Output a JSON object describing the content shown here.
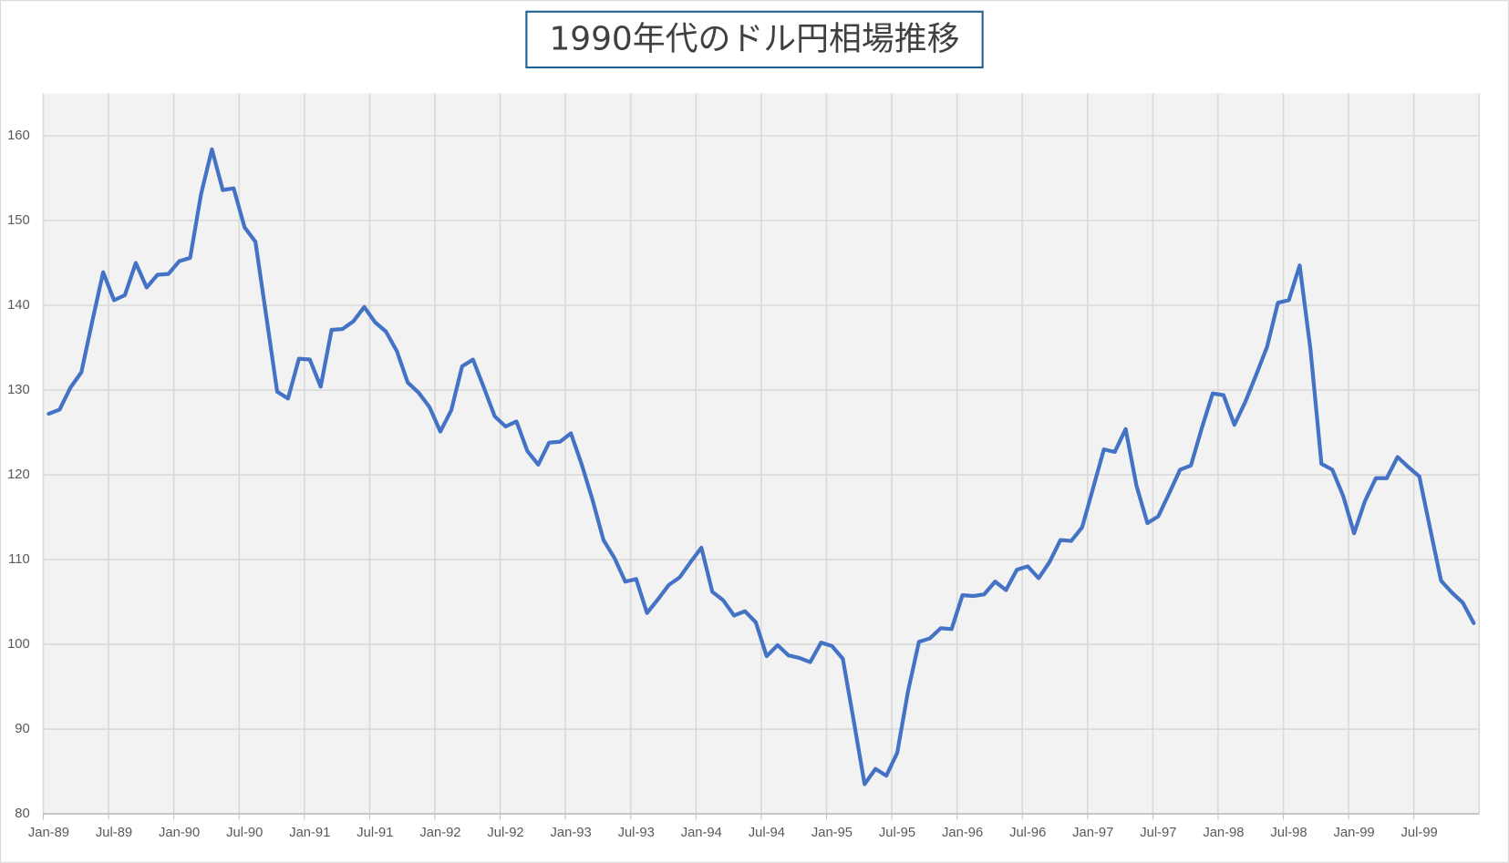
{
  "chart_data": {
    "type": "line",
    "title": "1990年代のドル円相場推移",
    "categories": [
      "Jan-89",
      null,
      null,
      null,
      null,
      null,
      "Jul-89",
      null,
      null,
      null,
      null,
      null,
      "Jan-90",
      null,
      null,
      null,
      null,
      null,
      "Jul-90",
      null,
      null,
      null,
      null,
      null,
      "Jan-91",
      null,
      null,
      null,
      null,
      null,
      "Jul-91",
      null,
      null,
      null,
      null,
      null,
      "Jan-92",
      null,
      null,
      null,
      null,
      null,
      "Jul-92",
      null,
      null,
      null,
      null,
      null,
      "Jan-93",
      null,
      null,
      null,
      null,
      null,
      "Jul-93",
      null,
      null,
      null,
      null,
      null,
      "Jan-94",
      null,
      null,
      null,
      null,
      null,
      "Jul-94",
      null,
      null,
      null,
      null,
      null,
      "Jan-95",
      null,
      null,
      null,
      null,
      null,
      "Jul-95",
      null,
      null,
      null,
      null,
      null,
      "Jan-96",
      null,
      null,
      null,
      null,
      null,
      "Jul-96",
      null,
      null,
      null,
      null,
      null,
      "Jan-97",
      null,
      null,
      null,
      null,
      null,
      "Jul-97",
      null,
      null,
      null,
      null,
      null,
      "Jan-98",
      null,
      null,
      null,
      null,
      null,
      "Jul-98",
      null,
      null,
      null,
      null,
      null,
      "Jan-99",
      null,
      null,
      null,
      null,
      null,
      "Jul-99",
      null,
      null,
      null,
      null,
      null
    ],
    "series": [
      {
        "color": "#4472c4",
        "values": [
          127.2,
          127.7,
          130.3,
          132.1,
          138.1,
          143.9,
          140.6,
          141.2,
          145.0,
          142.1,
          143.6,
          143.7,
          145.2,
          145.6,
          153.1,
          158.4,
          153.6,
          153.8,
          149.2,
          147.5,
          138.7,
          129.8,
          129.0,
          133.7,
          133.6,
          130.4,
          137.1,
          137.2,
          138.1,
          139.8,
          138.0,
          136.9,
          134.6,
          130.9,
          129.7,
          128.0,
          125.1,
          127.6,
          132.8,
          133.6,
          130.3,
          126.9,
          125.7,
          126.3,
          122.8,
          121.2,
          123.8,
          123.9,
          124.9,
          121.2,
          117.0,
          112.3,
          110.2,
          107.4,
          107.7,
          103.7,
          105.3,
          107.0,
          107.9,
          109.7,
          111.4,
          106.2,
          105.2,
          103.4,
          103.9,
          102.6,
          98.6,
          99.9,
          98.7,
          98.4,
          97.9,
          100.2,
          99.8,
          98.3,
          91.0,
          83.5,
          85.3,
          84.5,
          87.2,
          94.5,
          100.3,
          100.7,
          101.9,
          101.8,
          105.8,
          105.7,
          105.9,
          107.4,
          106.4,
          108.8,
          109.2,
          107.8,
          109.7,
          112.3,
          112.2,
          113.8,
          118.4,
          123.0,
          122.7,
          125.4,
          118.7,
          114.3,
          115.1,
          117.8,
          120.6,
          121.1,
          125.5,
          129.6,
          129.4,
          125.9,
          128.6,
          131.8,
          135.1,
          140.3,
          140.6,
          144.7,
          134.7,
          121.3,
          120.6,
          117.5,
          113.1,
          116.9,
          119.6,
          119.6,
          122.1,
          120.9,
          119.8,
          113.6,
          107.5,
          106.1,
          104.9,
          102.5
        ]
      }
    ],
    "ylim": [
      80,
      165
    ],
    "yticks": [
      80,
      90,
      100,
      110,
      120,
      130,
      140,
      150,
      160
    ],
    "grid": true
  }
}
